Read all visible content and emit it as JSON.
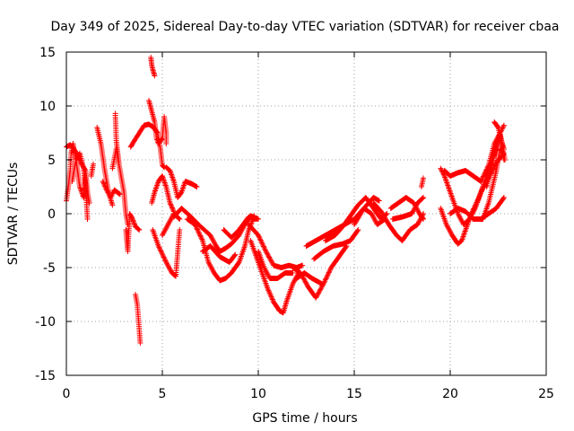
{
  "chart_data": {
    "type": "scatter",
    "title": "Day 349 of 2025, Sidereal Day-to-day VTEC variation (SDTVAR) for receiver cbaa",
    "xlabel": "GPS time / hours",
    "ylabel": "SDTVAR / TECUs",
    "xlim": [
      0,
      25
    ],
    "ylim": [
      -15,
      15
    ],
    "xticks": [
      0,
      5,
      10,
      15,
      20,
      25
    ],
    "yticks": [
      -15,
      -10,
      -5,
      0,
      5,
      10,
      15
    ],
    "grid": true,
    "marker": "+",
    "color": "#ff0000",
    "tracks": [
      [
        [
          0.0,
          1.2
        ],
        [
          0.1,
          2.5
        ],
        [
          0.2,
          4.0
        ],
        [
          0.25,
          5.6
        ],
        [
          0.35,
          6.5
        ],
        [
          0.5,
          5.0
        ],
        [
          0.7,
          2.5
        ],
        [
          0.9,
          1.5
        ],
        [
          1.0,
          3.5
        ]
      ],
      [
        [
          0.0,
          6.2
        ],
        [
          0.2,
          6.4
        ],
        [
          0.4,
          6.0
        ],
        [
          0.6,
          5.4
        ],
        [
          0.8,
          4.6
        ],
        [
          1.0,
          4.0
        ],
        [
          1.1,
          2.0
        ],
        [
          1.2,
          1.0
        ]
      ],
      [
        [
          0.3,
          3.0
        ],
        [
          0.5,
          5.0
        ],
        [
          0.7,
          5.6
        ],
        [
          0.9,
          4.2
        ],
        [
          1.0,
          2.6
        ],
        [
          1.1,
          -0.5
        ]
      ],
      [
        [
          1.3,
          3.5
        ],
        [
          1.4,
          4.6
        ]
      ],
      [
        [
          1.6,
          8.0
        ],
        [
          1.8,
          6.5
        ],
        [
          2.0,
          4.0
        ],
        [
          2.2,
          2.0
        ],
        [
          2.4,
          0.8
        ]
      ],
      [
        [
          1.9,
          3.0
        ],
        [
          2.1,
          2.2
        ],
        [
          2.3,
          1.5
        ],
        [
          2.5,
          2.2
        ],
        [
          2.8,
          1.8
        ]
      ],
      [
        [
          2.4,
          4.2
        ],
        [
          2.6,
          6.0
        ],
        [
          2.8,
          4.0
        ],
        [
          3.0,
          2.0
        ],
        [
          3.1,
          0.0
        ],
        [
          3.2,
          -1.0
        ]
      ],
      [
        [
          2.55,
          9.3
        ],
        [
          2.6,
          6.8
        ],
        [
          2.75,
          4.5
        ]
      ],
      [
        [
          3.1,
          -1.5
        ],
        [
          3.2,
          -3.5
        ],
        [
          3.3,
          0.0
        ],
        [
          3.45,
          -0.5
        ],
        [
          3.6,
          -1.2
        ],
        [
          3.8,
          -1.5
        ]
      ],
      [
        [
          3.35,
          6.2
        ],
        [
          3.55,
          6.8
        ],
        [
          3.8,
          7.5
        ],
        [
          4.05,
          8.2
        ],
        [
          4.3,
          8.3
        ],
        [
          4.55,
          8.0
        ],
        [
          4.75,
          7.5
        ],
        [
          4.9,
          6.0
        ],
        [
          5.0,
          4.5
        ],
        [
          5.1,
          4.3
        ]
      ],
      [
        [
          3.6,
          -7.5
        ],
        [
          3.7,
          -8.5
        ],
        [
          3.8,
          -10.8
        ],
        [
          3.85,
          -12.0
        ]
      ],
      [
        [
          4.4,
          14.5
        ],
        [
          4.45,
          13.8
        ],
        [
          4.5,
          13.4
        ],
        [
          4.6,
          12.8
        ]
      ],
      [
        [
          4.3,
          10.5
        ],
        [
          4.45,
          9.5
        ],
        [
          4.6,
          8.5
        ],
        [
          4.7,
          7.0
        ],
        [
          4.8,
          6.5
        ],
        [
          5.0,
          7.0
        ],
        [
          5.1,
          9.0
        ],
        [
          5.2,
          7.5
        ],
        [
          5.2,
          6.5
        ]
      ],
      [
        [
          4.45,
          1.0
        ],
        [
          4.6,
          2.0
        ],
        [
          4.8,
          3.0
        ],
        [
          5.0,
          3.5
        ],
        [
          5.2,
          2.5
        ],
        [
          5.4,
          1.0
        ],
        [
          5.6,
          0.2
        ]
      ],
      [
        [
          4.5,
          -1.5
        ],
        [
          4.8,
          -3.0
        ],
        [
          5.2,
          -4.5
        ],
        [
          5.5,
          -5.5
        ],
        [
          5.7,
          -5.8
        ],
        [
          5.9,
          -1.5
        ]
      ],
      [
        [
          5.0,
          -2.0
        ],
        [
          5.3,
          -1.0
        ],
        [
          5.6,
          0.0
        ],
        [
          5.9,
          -0.5
        ]
      ],
      [
        [
          5.2,
          4.3
        ],
        [
          5.4,
          4.0
        ],
        [
          5.6,
          3.0
        ],
        [
          5.8,
          1.5
        ],
        [
          6.0,
          2.0
        ],
        [
          6.2,
          3.0
        ],
        [
          6.5,
          2.8
        ],
        [
          6.8,
          2.5
        ]
      ],
      [
        [
          5.6,
          -0.3
        ],
        [
          6.0,
          0.5
        ],
        [
          6.5,
          -0.3
        ],
        [
          7.0,
          -1.2
        ],
        [
          7.5,
          -2.0
        ],
        [
          7.8,
          -3.0
        ],
        [
          8.0,
          -3.5
        ],
        [
          8.3,
          -3.2
        ],
        [
          8.6,
          -2.8
        ],
        [
          9.0,
          -2.0
        ],
        [
          9.3,
          -1.0
        ],
        [
          9.6,
          -0.2
        ],
        [
          10.0,
          -0.5
        ]
      ],
      [
        [
          6.3,
          -0.5
        ],
        [
          6.7,
          -1.0
        ],
        [
          7.1,
          -2.5
        ],
        [
          7.4,
          -4.5
        ],
        [
          7.7,
          -5.5
        ],
        [
          8.0,
          -6.2
        ],
        [
          8.3,
          -6.0
        ],
        [
          8.6,
          -5.5
        ],
        [
          9.0,
          -4.5
        ],
        [
          9.3,
          -3.0
        ],
        [
          9.5,
          -1.5
        ],
        [
          9.8,
          -0.2
        ]
      ],
      [
        [
          7.1,
          -3.5
        ],
        [
          7.5,
          -3.0
        ],
        [
          8.0,
          -4.0
        ],
        [
          8.5,
          -4.5
        ],
        [
          8.8,
          -3.8
        ]
      ],
      [
        [
          8.2,
          -1.5
        ],
        [
          8.6,
          -2.2
        ],
        [
          9.0,
          -1.5
        ],
        [
          9.5,
          -0.3
        ],
        [
          9.9,
          -0.5
        ]
      ],
      [
        [
          9.5,
          -1.0
        ],
        [
          10.0,
          -2.0
        ],
        [
          10.4,
          -3.5
        ],
        [
          10.8,
          -4.8
        ],
        [
          11.2,
          -5.0
        ],
        [
          11.6,
          -4.8
        ],
        [
          12.0,
          -5.0
        ],
        [
          12.3,
          -4.8
        ]
      ],
      [
        [
          9.6,
          -2.5
        ],
        [
          9.9,
          -4.0
        ],
        [
          10.2,
          -5.5
        ],
        [
          10.5,
          -7.0
        ],
        [
          10.8,
          -8.2
        ],
        [
          11.1,
          -9.0
        ],
        [
          11.3,
          -9.2
        ],
        [
          11.5,
          -8.0
        ],
        [
          11.8,
          -6.5
        ],
        [
          12.1,
          -5.5
        ]
      ],
      [
        [
          10.0,
          -3.5
        ],
        [
          10.3,
          -5.0
        ],
        [
          10.6,
          -6.0
        ],
        [
          11.0,
          -6.0
        ],
        [
          11.4,
          -5.5
        ],
        [
          11.8,
          -5.5
        ]
      ],
      [
        [
          11.8,
          -5.0
        ],
        [
          12.2,
          -5.5
        ],
        [
          12.6,
          -6.8
        ],
        [
          13.0,
          -7.8
        ],
        [
          13.4,
          -6.5
        ],
        [
          13.8,
          -5.0
        ],
        [
          14.2,
          -4.0
        ],
        [
          14.6,
          -3.0
        ]
      ],
      [
        [
          12.0,
          -6.0
        ],
        [
          12.4,
          -5.5
        ],
        [
          12.8,
          -6.0
        ],
        [
          13.3,
          -6.5
        ]
      ],
      [
        [
          12.5,
          -3.0
        ],
        [
          13.0,
          -2.5
        ],
        [
          13.5,
          -2.0
        ],
        [
          14.0,
          -1.5
        ],
        [
          14.5,
          -1.0
        ],
        [
          15.0,
          -0.5
        ],
        [
          15.5,
          0.5
        ],
        [
          16.0,
          1.5
        ],
        [
          16.3,
          1.2
        ]
      ],
      [
        [
          12.9,
          -4.2
        ],
        [
          13.4,
          -3.5
        ],
        [
          13.9,
          -3.0
        ],
        [
          14.4,
          -2.8
        ],
        [
          14.8,
          -2.5
        ],
        [
          15.2,
          -1.5
        ]
      ],
      [
        [
          13.5,
          -2.5
        ],
        [
          14.0,
          -2.0
        ],
        [
          14.4,
          -1.2
        ],
        [
          14.8,
          -0.2
        ],
        [
          15.2,
          0.8
        ],
        [
          15.6,
          1.5
        ],
        [
          16.0,
          0.5
        ],
        [
          16.4,
          -0.5
        ],
        [
          16.7,
          0.0
        ]
      ],
      [
        [
          15.0,
          -1.0
        ],
        [
          15.5,
          0.5
        ],
        [
          15.9,
          0.0
        ],
        [
          16.2,
          -1.0
        ],
        [
          16.6,
          -0.5
        ]
      ],
      [
        [
          16.0,
          1.0
        ],
        [
          16.4,
          0.2
        ],
        [
          16.8,
          -1.0
        ],
        [
          17.2,
          -2.0
        ],
        [
          17.5,
          -2.5
        ],
        [
          17.9,
          -1.5
        ],
        [
          18.3,
          -1.0
        ],
        [
          18.6,
          0.0
        ]
      ],
      [
        [
          16.9,
          0.5
        ],
        [
          17.3,
          1.0
        ],
        [
          17.7,
          1.5
        ],
        [
          18.1,
          1.0
        ],
        [
          18.4,
          0.0
        ],
        [
          18.6,
          -0.5
        ]
      ],
      [
        [
          17.0,
          -0.5
        ],
        [
          17.5,
          -0.3
        ],
        [
          18.0,
          0.0
        ],
        [
          18.3,
          1.0
        ],
        [
          18.6,
          1.5
        ]
      ],
      [
        [
          18.6,
          3.3
        ],
        [
          18.5,
          2.5
        ]
      ],
      [
        [
          19.5,
          4.2
        ],
        [
          19.7,
          3.5
        ],
        [
          19.9,
          2.5
        ],
        [
          20.1,
          1.5
        ],
        [
          20.4,
          0.0
        ],
        [
          20.7,
          -1.0
        ],
        [
          21.0,
          -0.5
        ],
        [
          21.3,
          0.5
        ],
        [
          21.6,
          2.0
        ],
        [
          21.9,
          3.0
        ],
        [
          22.2,
          4.0
        ],
        [
          22.5,
          5.0
        ],
        [
          22.8,
          5.5
        ]
      ],
      [
        [
          19.7,
          4.0
        ],
        [
          20.0,
          3.5
        ],
        [
          20.4,
          3.8
        ],
        [
          20.8,
          4.0
        ],
        [
          21.2,
          3.5
        ],
        [
          21.6,
          3.0
        ],
        [
          22.0,
          4.5
        ],
        [
          22.3,
          6.5
        ],
        [
          22.6,
          7.5
        ],
        [
          22.8,
          5.0
        ]
      ],
      [
        [
          19.5,
          0.5
        ],
        [
          19.8,
          -1.0
        ],
        [
          20.1,
          -2.0
        ],
        [
          20.4,
          -2.8
        ],
        [
          20.6,
          -2.5
        ],
        [
          20.8,
          -1.5
        ],
        [
          21.1,
          0.0
        ],
        [
          21.5,
          1.5
        ],
        [
          21.9,
          3.5
        ],
        [
          22.3,
          5.5
        ],
        [
          22.6,
          7.5
        ],
        [
          22.8,
          8.2
        ]
      ],
      [
        [
          20.0,
          0.0
        ],
        [
          20.4,
          0.5
        ],
        [
          20.8,
          0.2
        ],
        [
          21.2,
          -0.5
        ],
        [
          21.6,
          -0.5
        ],
        [
          22.0,
          0.0
        ],
        [
          22.4,
          0.5
        ],
        [
          22.8,
          1.5
        ]
      ],
      [
        [
          21.3,
          -0.5
        ],
        [
          21.7,
          -0.5
        ],
        [
          22.0,
          1.0
        ],
        [
          22.4,
          4.0
        ],
        [
          22.6,
          6.0
        ],
        [
          22.8,
          5.5
        ]
      ],
      [
        [
          21.9,
          2.5
        ],
        [
          22.2,
          4.8
        ],
        [
          22.4,
          6.2
        ],
        [
          22.6,
          7.2
        ],
        [
          22.8,
          6.0
        ]
      ],
      [
        [
          22.3,
          8.5
        ],
        [
          22.5,
          8.0
        ],
        [
          22.7,
          6.5
        ],
        [
          22.85,
          5.0
        ]
      ]
    ]
  }
}
